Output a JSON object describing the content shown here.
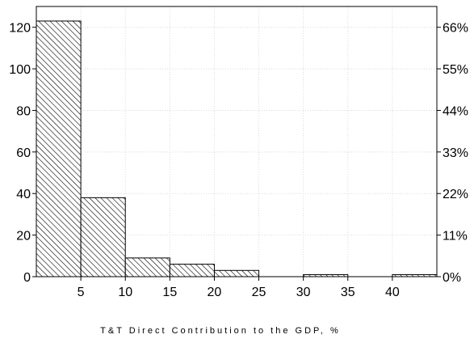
{
  "chart_data": {
    "type": "bar",
    "xlabel": "T&T Direct Contribution to the GDP, %",
    "ylabel": "",
    "x_ticks": [
      "5",
      "10",
      "15",
      "20",
      "25",
      "30",
      "35",
      "40"
    ],
    "y_ticks_left": [
      "0",
      "20",
      "40",
      "60",
      "80",
      "100",
      "120"
    ],
    "y_ticks_right": [
      "0%",
      "11%",
      "22%",
      "33%",
      "44%",
      "55%",
      "66%"
    ],
    "ylim": [
      0,
      130
    ],
    "xlim": [
      0,
      45
    ],
    "grid": true,
    "bins": [
      {
        "x0": 0,
        "x1": 5,
        "value": 123
      },
      {
        "x0": 5,
        "x1": 10,
        "value": 38
      },
      {
        "x0": 10,
        "x1": 15,
        "value": 9
      },
      {
        "x0": 15,
        "x1": 20,
        "value": 6
      },
      {
        "x0": 20,
        "x1": 25,
        "value": 3
      },
      {
        "x0": 25,
        "x1": 30,
        "value": 0
      },
      {
        "x0": 30,
        "x1": 35,
        "value": 1
      },
      {
        "x0": 35,
        "x1": 40,
        "value": 0
      },
      {
        "x0": 40,
        "x1": 45,
        "value": 1
      }
    ],
    "bar_fill": "diagonal-hatch",
    "colors": {
      "bar_stroke": "#000000",
      "hatch": "#000000",
      "grid": "#d9d9d9",
      "background": "#ffffff"
    }
  }
}
